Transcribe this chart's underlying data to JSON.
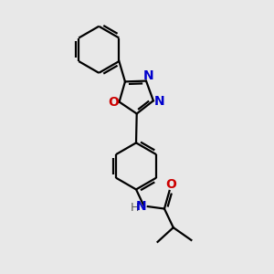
{
  "background_color": "#e8e8e8",
  "bond_color": "#000000",
  "N_color": "#0000cc",
  "O_color": "#cc0000",
  "line_width": 1.6,
  "font_size": 9,
  "figsize": [
    3.0,
    3.0
  ],
  "dpi": 100,
  "xlim": [
    -2.2,
    2.8
  ],
  "ylim": [
    -3.2,
    2.8
  ]
}
